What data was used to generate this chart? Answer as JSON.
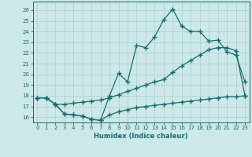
{
  "xlabel": "Humidex (Indice chaleur)",
  "bg_color": "#cce8e8",
  "line_color": "#1a6b6b",
  "grid_color": "#aacfcf",
  "ylim": [
    15.5,
    26.8
  ],
  "xlim": [
    -0.5,
    23.5
  ],
  "yticks": [
    16,
    17,
    18,
    19,
    20,
    21,
    22,
    23,
    24,
    25,
    26
  ],
  "xticks": [
    0,
    1,
    2,
    3,
    4,
    5,
    6,
    7,
    8,
    9,
    10,
    11,
    12,
    13,
    14,
    15,
    16,
    17,
    18,
    19,
    20,
    21,
    22,
    23
  ],
  "line1_x": [
    0,
    1,
    2,
    3,
    4,
    5,
    6,
    7,
    8,
    9,
    10,
    11,
    12,
    13,
    14,
    15,
    16,
    17,
    18,
    19,
    20,
    21,
    22,
    23
  ],
  "line1_y": [
    17.8,
    17.8,
    17.2,
    16.3,
    16.2,
    16.1,
    15.8,
    15.7,
    18.0,
    20.1,
    19.3,
    22.7,
    22.5,
    23.5,
    25.1,
    26.1,
    24.5,
    24.0,
    24.0,
    23.1,
    23.2,
    22.1,
    21.8,
    19.3
  ],
  "line2_x": [
    0,
    1,
    2,
    3,
    4,
    5,
    6,
    7,
    8,
    9,
    10,
    11,
    12,
    13,
    14,
    15,
    16,
    17,
    18,
    19,
    20,
    21,
    22,
    23
  ],
  "line2_y": [
    17.8,
    17.8,
    17.2,
    17.2,
    17.3,
    17.4,
    17.5,
    17.6,
    17.8,
    18.1,
    18.4,
    18.7,
    19.0,
    19.3,
    19.5,
    20.2,
    20.8,
    21.3,
    21.8,
    22.3,
    22.5,
    22.5,
    22.2,
    18.0
  ],
  "line3_x": [
    0,
    1,
    2,
    3,
    4,
    5,
    6,
    7,
    8,
    9,
    10,
    11,
    12,
    13,
    14,
    15,
    16,
    17,
    18,
    19,
    20,
    21,
    22,
    23
  ],
  "line3_y": [
    17.8,
    17.8,
    17.2,
    16.3,
    16.2,
    16.1,
    15.8,
    15.7,
    16.2,
    16.5,
    16.7,
    16.9,
    17.0,
    17.1,
    17.2,
    17.3,
    17.4,
    17.5,
    17.6,
    17.7,
    17.8,
    17.9,
    17.9,
    18.0
  ]
}
